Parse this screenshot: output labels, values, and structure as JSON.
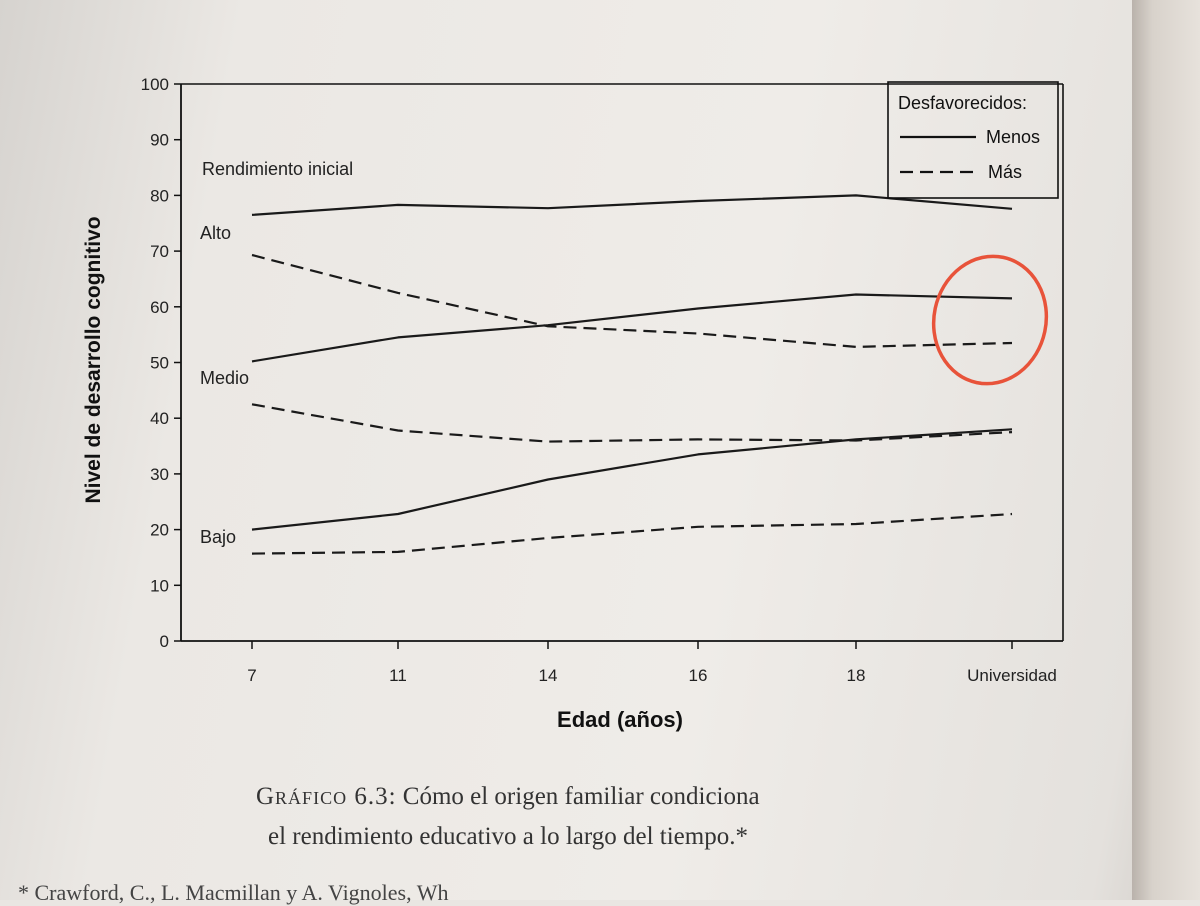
{
  "chart_data": {
    "type": "line",
    "xlabel": "Edad (años)",
    "ylabel": "Nivel de desarrollo cognitivo",
    "categories": [
      "7",
      "11",
      "14",
      "16",
      "18",
      "Universidad"
    ],
    "ylim": [
      0,
      100
    ],
    "yticks": [
      0,
      10,
      20,
      30,
      40,
      50,
      60,
      70,
      80,
      90,
      100
    ],
    "grid": false,
    "legend": {
      "title": "Desfavorecidos:",
      "placement": "top-right",
      "entries": [
        {
          "label": "Menos",
          "style": "solid"
        },
        {
          "label": "Más",
          "style": "dashed"
        }
      ]
    },
    "annotations": {
      "heading": "Rendimiento inicial",
      "groups": [
        "Alto",
        "Medio",
        "Bajo"
      ]
    },
    "series": [
      {
        "group": "Alto",
        "type": "Menos",
        "values": [
          76.5,
          78.3,
          77.7,
          79.0,
          80.0,
          77.6
        ]
      },
      {
        "group": "Alto",
        "type": "Más",
        "values": [
          69.3,
          62.5,
          56.5,
          55.2,
          52.8,
          53.5
        ]
      },
      {
        "group": "Medio",
        "type": "Menos",
        "values": [
          50.2,
          54.5,
          56.7,
          59.7,
          62.2,
          61.5
        ]
      },
      {
        "group": "Medio",
        "type": "Más",
        "values": [
          42.5,
          37.8,
          35.8,
          36.2,
          36.0,
          37.5
        ]
      },
      {
        "group": "Bajo",
        "type": "Menos",
        "values": [
          20.0,
          22.8,
          29.0,
          33.5,
          36.2,
          38.0
        ]
      },
      {
        "group": "Bajo",
        "type": "Más",
        "values": [
          15.7,
          16.0,
          18.5,
          20.5,
          21.0,
          22.8
        ]
      }
    ]
  },
  "caption": {
    "label": "Gráfico 6.3:",
    "line1": "Cómo el origen familiar condiciona",
    "line2": "el rendimiento educativo a lo largo del tiempo.*"
  },
  "footnote": "* Crawford, C., L. Macmillan y A. Vignoles, Wh"
}
